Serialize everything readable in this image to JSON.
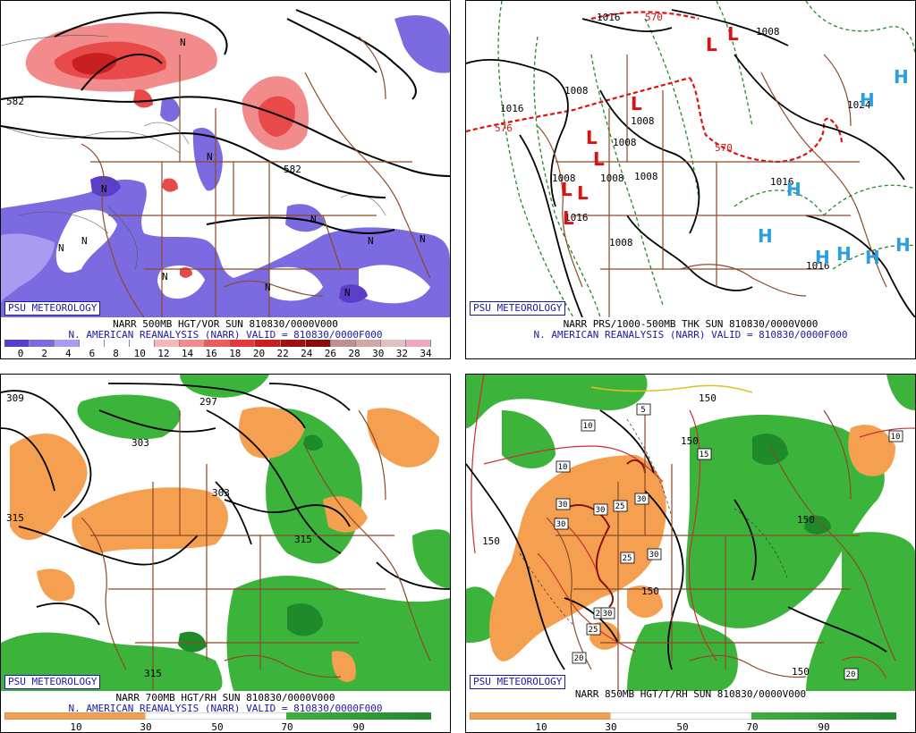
{
  "badge": "PSU METEOROLOGY",
  "panels": {
    "p1": {
      "line1": "NARR 500MB HGT/VOR SUN 810830/0000V000",
      "line2": "N. AMERICAN REANALYSIS (NARR) VALID = 810830/0000F000",
      "labels": [
        "582",
        "582",
        "N",
        "N",
        "N",
        "N",
        "N",
        "N",
        "N",
        "N",
        "N",
        "N",
        "N"
      ],
      "colorbar": {
        "ticks": [
          "0",
          "2",
          "4",
          "6",
          "8",
          "10",
          "12",
          "14",
          "16",
          "18",
          "20",
          "22",
          "24",
          "26",
          "28",
          "30",
          "32",
          "34"
        ],
        "colors": [
          "#5a3ec8",
          "#7b6ae0",
          "#a99cf0",
          "#ffffff",
          "#ffffff",
          "#ffffff",
          "#f4b8b8",
          "#f28c8c",
          "#ea5c5c",
          "#e03a3a",
          "#c8201f",
          "#a01010",
          "#8a0a0a",
          "#c09090",
          "#d0a8a8",
          "#e0c0c0",
          "#f0a8c0"
        ]
      }
    },
    "p2": {
      "line1": "NARR PRS/1000-500MB THK SUN 810830/0000V000",
      "line2": "N. AMERICAN REANALYSIS (NARR) VALID = 810830/0000F000",
      "labels": [
        "1016",
        "570",
        "1008",
        "1016",
        "576",
        "1008",
        "1008",
        "1008",
        "1008",
        "570",
        "1008",
        "1008",
        "1008",
        "1016",
        "1024",
        "1016",
        "1016"
      ],
      "lows": [
        "L",
        "L",
        "L",
        "L",
        "L",
        "L",
        "L",
        "L"
      ],
      "highs": [
        "H",
        "H",
        "H",
        "H",
        "H",
        "H",
        "H",
        "H",
        "H"
      ]
    },
    "p3": {
      "line1": "NARR 700MB HGT/RH SUN 810830/0000V000",
      "line2": "N. AMERICAN REANALYSIS (NARR) VALID = 810830/0000F000",
      "labels": [
        "309",
        "297",
        "303",
        "303",
        "315",
        "315",
        "315"
      ],
      "colorbar": {
        "ticks": [
          "10",
          "30",
          "50",
          "70",
          "90"
        ]
      }
    },
    "p4": {
      "line1": "NARR 850MB HGT/T/RH SUN 810830/0000V000",
      "labels": [
        "150",
        "150",
        "150",
        "150",
        "150",
        "150"
      ],
      "boxed": [
        "5",
        "10",
        "10",
        "10",
        "15",
        "30",
        "30",
        "25",
        "30",
        "30",
        "25",
        "30",
        "25",
        "30",
        "25",
        "20",
        "20"
      ],
      "colorbar": {
        "ticks": [
          "10",
          "30",
          "50",
          "70",
          "90"
        ]
      }
    }
  },
  "colors": {
    "badge_blue": "#1a1aa0",
    "vort_purple": "#7b6ae0",
    "vort_red": "#e84a4a",
    "rh_green": "#3cb43c",
    "rh_dark_green": "#1e8a2a",
    "rh_orange": "#f5a050",
    "border_brown": "#8b4a2a",
    "low_red": "#e01010",
    "high_cyan": "#2aa0e0"
  }
}
